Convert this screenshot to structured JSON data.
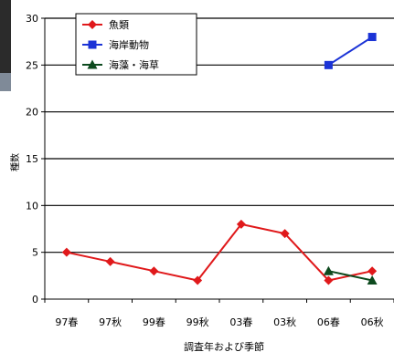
{
  "chart_data": {
    "type": "line",
    "title": "",
    "xlabel": "調査年および季節",
    "ylabel": "種数",
    "ylim": [
      0,
      30
    ],
    "yticks": [
      0,
      5,
      10,
      15,
      20,
      25,
      30
    ],
    "grid": "horizontal",
    "legend_position": "top-left",
    "categories": [
      "97春",
      "97秋",
      "99春",
      "99秋",
      "03春",
      "03秋",
      "06春",
      "06秋"
    ],
    "series": [
      {
        "name": "魚類",
        "color": "#e0191b",
        "marker": "diamond",
        "values": [
          5,
          4,
          3,
          2,
          8,
          7,
          2,
          3
        ]
      },
      {
        "name": "海岸動物",
        "color": "#1b33d6",
        "marker": "square",
        "values": [
          null,
          null,
          null,
          null,
          null,
          null,
          25,
          28
        ]
      },
      {
        "name": "海藻・海草",
        "color": "#0d4a1e",
        "marker": "triangle",
        "values": [
          null,
          null,
          null,
          null,
          null,
          null,
          3,
          2
        ]
      }
    ]
  }
}
